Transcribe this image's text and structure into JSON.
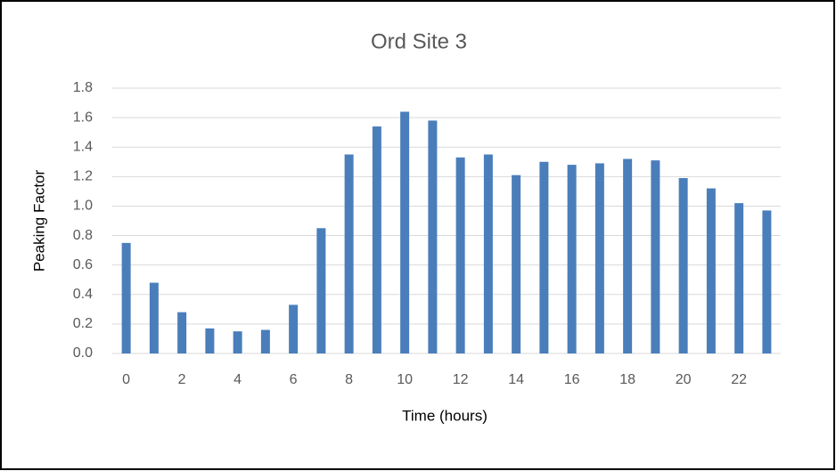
{
  "chart_data": {
    "type": "bar",
    "title": "Ord Site 3",
    "x_label": "Time (hours)",
    "y_label": "Peaking Factor",
    "categories": [
      "0",
      null,
      "2",
      null,
      "4",
      null,
      "6",
      null,
      "8",
      null,
      "10",
      null,
      "12",
      null,
      "14",
      null,
      "16",
      null,
      "18",
      null,
      "20",
      null,
      "22",
      null
    ],
    "values": [
      0.75,
      0.48,
      0.28,
      0.17,
      0.15,
      0.16,
      0.33,
      0.85,
      1.35,
      1.54,
      1.64,
      1.58,
      1.33,
      1.35,
      1.21,
      1.3,
      1.28,
      1.29,
      1.32,
      1.31,
      1.19,
      1.12,
      1.02,
      0.97
    ],
    "color": "#4a7ebb",
    "ylim": [
      0,
      1.8
    ],
    "yticks": [
      {
        "value": 0,
        "label": "0.0"
      },
      0.2,
      0.4,
      0.6,
      0.8,
      {
        "value": 1,
        "label": "1.0"
      },
      1.2,
      1.4,
      1.6,
      1.8
    ],
    "grid": true
  }
}
